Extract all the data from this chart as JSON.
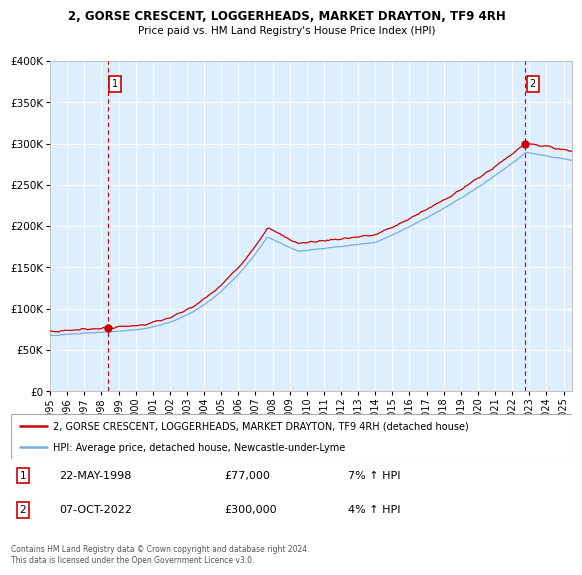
{
  "title": "2, GORSE CRESCENT, LOGGERHEADS, MARKET DRAYTON, TF9 4RH",
  "subtitle": "Price paid vs. HM Land Registry's House Price Index (HPI)",
  "legend_line1": "2, GORSE CRESCENT, LOGGERHEADS, MARKET DRAYTON, TF9 4RH (detached house)",
  "legend_line2": "HPI: Average price, detached house, Newcastle-under-Lyme",
  "annotation1_date": "22-MAY-1998",
  "annotation1_price": "£77,000",
  "annotation1_hpi": "7% ↑ HPI",
  "annotation2_date": "07-OCT-2022",
  "annotation2_price": "£300,000",
  "annotation2_hpi": "4% ↑ HPI",
  "footer": "Contains HM Land Registry data © Crown copyright and database right 2024.\nThis data is licensed under the Open Government Licence v3.0.",
  "sale1_year": 1998.38,
  "sale1_value": 77000,
  "sale2_year": 2022.77,
  "sale2_value": 300000,
  "hpi_color": "#7aadde",
  "price_color": "#cc0000",
  "dashed_color": "#cc0000",
  "dot_color": "#cc0000",
  "bg_color": "#ddeeff",
  "grid_color": "#ffffff",
  "ylim_min": 0,
  "ylim_max": 400000,
  "xlim_start": 1995.0,
  "xlim_end": 2025.5
}
